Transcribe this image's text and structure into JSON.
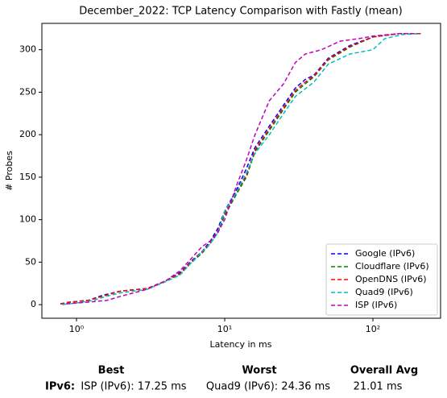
{
  "chart_data": {
    "type": "line",
    "title": "December_2022: TCP Latency Comparison with Fastly (mean)",
    "xlabel": "Latency in ms",
    "ylabel": "# Probes",
    "xscale": "log",
    "xlim": [
      0.584,
      286
    ],
    "ylim": [
      -16,
      331
    ],
    "xticks": [
      {
        "value": 1,
        "label": "10⁰"
      },
      {
        "value": 10,
        "label": "10¹"
      },
      {
        "value": 100,
        "label": "10²"
      }
    ],
    "yticks": [
      0,
      50,
      100,
      150,
      200,
      250,
      300
    ],
    "legend": "lower right",
    "series": [
      {
        "name": "Google (IPv6)",
        "color": "#0000ff",
        "x": [
          0.78,
          0.9,
          1.2,
          1.5,
          2,
          3,
          4,
          5,
          6,
          7,
          8,
          9,
          10,
          12,
          14,
          16,
          20,
          25,
          30,
          35,
          40,
          50,
          70,
          100,
          150,
          210
        ],
        "values": [
          1,
          3,
          5,
          11,
          16,
          19,
          28,
          38,
          52,
          62,
          75,
          90,
          110,
          135,
          160,
          185,
          210,
          235,
          255,
          265,
          270,
          290,
          305,
          315,
          319,
          319
        ]
      },
      {
        "name": "Cloudflare (IPv6)",
        "color": "#008000",
        "x": [
          0.78,
          0.9,
          1.2,
          1.5,
          2,
          3,
          4,
          5,
          6,
          7,
          8,
          9,
          10,
          12,
          14,
          16,
          20,
          25,
          30,
          35,
          40,
          50,
          70,
          100,
          150,
          210
        ],
        "values": [
          1,
          3,
          5,
          10,
          16,
          19,
          28,
          36,
          50,
          60,
          72,
          85,
          105,
          130,
          150,
          180,
          205,
          230,
          250,
          260,
          268,
          288,
          303,
          315,
          319,
          319
        ]
      },
      {
        "name": "OpenDNS (IPv6)",
        "color": "#ff0000",
        "x": [
          0.78,
          0.9,
          1.2,
          1.5,
          2,
          3,
          4,
          5,
          6,
          7,
          8,
          9,
          10,
          12,
          14,
          16,
          20,
          25,
          30,
          35,
          40,
          50,
          70,
          100,
          150,
          210
        ],
        "values": [
          1,
          3,
          5,
          10,
          16,
          19,
          28,
          37,
          51,
          61,
          73,
          87,
          108,
          132,
          152,
          182,
          207,
          232,
          252,
          262,
          269,
          289,
          304,
          315,
          319,
          319
        ]
      },
      {
        "name": "Quad9 (IPv6)",
        "color": "#00bfbf",
        "x": [
          0.8,
          1,
          1.3,
          1.6,
          2,
          3,
          4,
          5,
          6,
          7,
          8,
          9,
          10,
          12,
          14,
          16,
          20,
          25,
          30,
          40,
          50,
          70,
          100,
          120,
          160,
          210
        ],
        "values": [
          0,
          2,
          5,
          10,
          14,
          18,
          27,
          35,
          50,
          62,
          72,
          85,
          110,
          132,
          155,
          178,
          200,
          225,
          245,
          262,
          283,
          295,
          300,
          313,
          318,
          319
        ]
      },
      {
        "name": "ISP (IPv6)",
        "color": "#bf00bf",
        "x": [
          0.85,
          1.2,
          1.6,
          2,
          3,
          4,
          5,
          6,
          7,
          8,
          9,
          10,
          12,
          14,
          16,
          20,
          25,
          30,
          35,
          45,
          60,
          80,
          100,
          150,
          200
        ],
        "values": [
          1,
          3,
          5,
          10,
          18,
          28,
          40,
          55,
          68,
          75,
          85,
          100,
          140,
          170,
          200,
          240,
          260,
          285,
          295,
          300,
          310,
          313,
          316,
          319,
          319
        ]
      }
    ]
  },
  "table": {
    "headers": [
      "Best",
      "Worst",
      "Overall Avg"
    ],
    "rows": [
      {
        "label": "IPv6:",
        "cells": [
          "ISP (IPv6): 17.25 ms",
          "Quad9 (IPv6): 24.36 ms",
          "21.01 ms"
        ]
      }
    ]
  }
}
